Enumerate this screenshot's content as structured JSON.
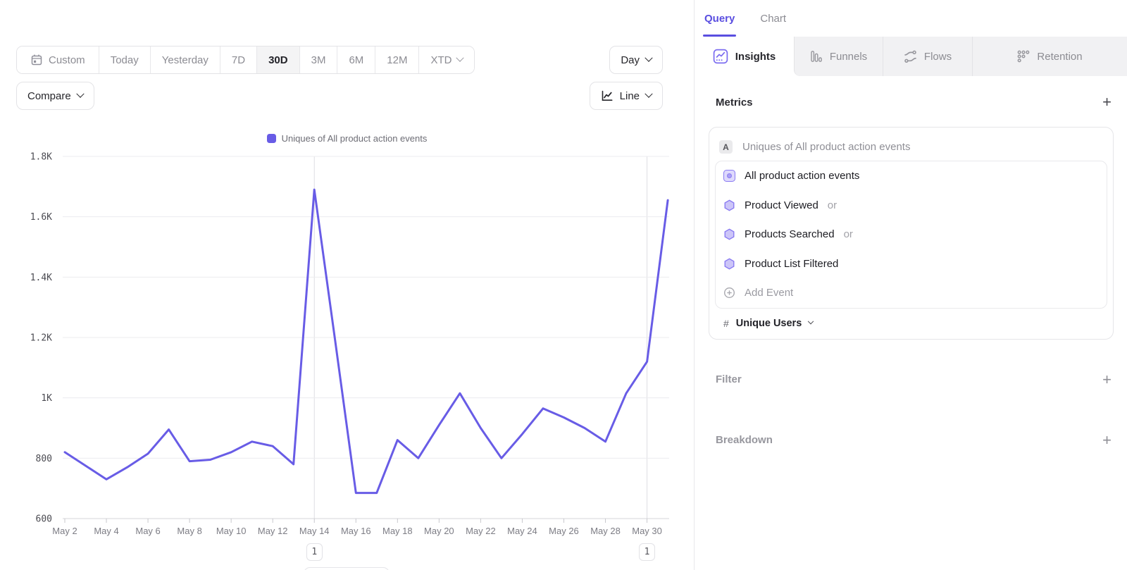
{
  "toolbar": {
    "ranges": [
      {
        "label": "Custom"
      },
      {
        "label": "Today"
      },
      {
        "label": "Yesterday"
      },
      {
        "label": "7D"
      },
      {
        "label": "30D"
      },
      {
        "label": "3M"
      },
      {
        "label": "6M"
      },
      {
        "label": "12M"
      },
      {
        "label": "XTD"
      }
    ],
    "interval_label": "Day",
    "compare_label": "Compare",
    "chart_type_label": "Line"
  },
  "chart_data": {
    "type": "line",
    "legend_label": "Uniques of All product action events",
    "series": [
      {
        "name": "Uniques of All product action events",
        "values": [
          820,
          775,
          730,
          770,
          815,
          895,
          790,
          795,
          820,
          855,
          840,
          780,
          1690,
          1190,
          685,
          685,
          860,
          800,
          910,
          1015,
          900,
          800,
          880,
          965,
          935,
          900,
          855,
          1015,
          1120,
          1655
        ]
      }
    ],
    "categories": [
      "May 2",
      "May 3",
      "May 4",
      "May 5",
      "May 6",
      "May 7",
      "May 8",
      "May 9",
      "May 10",
      "May 11",
      "May 12",
      "May 13",
      "May 14",
      "May 15",
      "May 16",
      "May 17",
      "May 18",
      "May 19",
      "May 20",
      "May 21",
      "May 22",
      "May 23",
      "May 24",
      "May 25",
      "May 26",
      "May 27",
      "May 28",
      "May 29",
      "May 30",
      "May 31"
    ],
    "x_tick_labels": [
      "May 2",
      "May 4",
      "May 6",
      "May 8",
      "May 10",
      "May 12",
      "May 14",
      "May 16",
      "May 18",
      "May 20",
      "May 22",
      "May 24",
      "May 26",
      "May 28",
      "May 30"
    ],
    "y_tick_labels": [
      "600",
      "800",
      "1K",
      "1.2K",
      "1.4K",
      "1.6K",
      "1.8K"
    ],
    "ylim": [
      600,
      1800
    ],
    "grid": "horizontal",
    "legend_position": "top-center",
    "line_color": "#685ce6",
    "annotations": [
      {
        "x": "May 14",
        "label": "1"
      },
      {
        "x": "May 30",
        "label": "1"
      }
    ]
  },
  "panel": {
    "tabs": {
      "query": "Query",
      "chart": "Chart"
    },
    "report_tabs": [
      {
        "label": "Insights"
      },
      {
        "label": "Funnels"
      },
      {
        "label": "Flows"
      },
      {
        "label": "Retention"
      }
    ],
    "metrics": {
      "heading": "Metrics",
      "add_label": "+",
      "card_badge": "A",
      "card_title": "Uniques of All product action events",
      "events": [
        {
          "name": "All product action events",
          "suffix": ""
        },
        {
          "name": "Product Viewed",
          "suffix": "or"
        },
        {
          "name": "Products Searched",
          "suffix": "or"
        },
        {
          "name": "Product List Filtered",
          "suffix": ""
        },
        {
          "name": "Add Event",
          "suffix": ""
        }
      ],
      "measurement": {
        "symbol": "#",
        "label": "Unique Users"
      }
    },
    "filter": {
      "heading": "Filter",
      "add_label": "+"
    },
    "breakdown": {
      "heading": "Breakdown",
      "add_label": "+"
    }
  }
}
